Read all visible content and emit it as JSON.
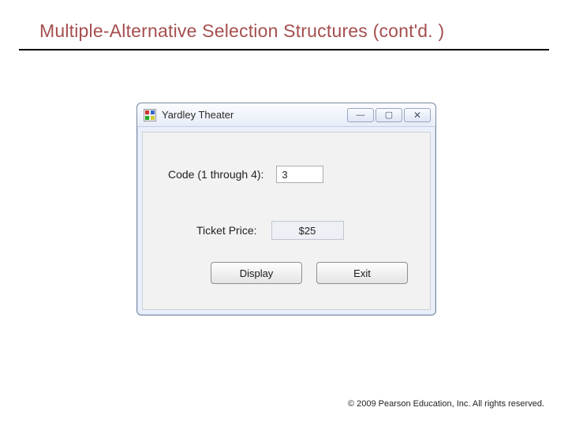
{
  "slide": {
    "title": "Multiple-Alternative Selection Structures (cont'd. )",
    "underline_color": "#000000",
    "title_color": "#a54e4e",
    "background": "#ffffff"
  },
  "window": {
    "title": "Yardley Theater",
    "buttons": {
      "minimize_glyph": "—",
      "maximize_glyph": "▢",
      "close_glyph": "✕"
    },
    "form": {
      "code_label": "Code (1 through 4):",
      "code_value": "3",
      "price_label": "Ticket Price:",
      "price_value": "$25",
      "display_button": "Display",
      "exit_button": "Exit"
    },
    "colors": {
      "frame_border": "#7a8aa0",
      "titlebar_grad_top": "#fbfcfe",
      "titlebar_grad_bottom": "#e6ecf8",
      "client_bg": "#f2f2f2",
      "input_border": "#abadb3",
      "pricebox_bg": "#eef0f6",
      "btn_grad_top": "#fdfdfd",
      "btn_grad_bottom": "#e4e4e4"
    }
  },
  "footer": {
    "text": "© 2009 Pearson Education, Inc.  All rights reserved."
  }
}
